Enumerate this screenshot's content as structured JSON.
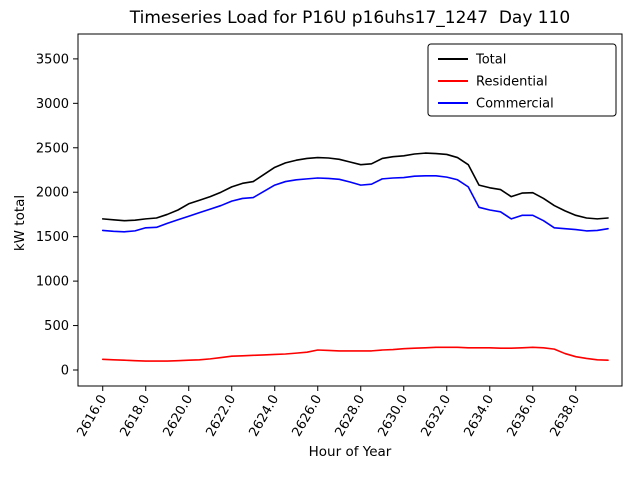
{
  "chart_data": {
    "type": "line",
    "title": "Timeseries Load for P16U p16uhs17_1247  Day 110",
    "xlabel": "Hour of Year",
    "ylabel": "kW total",
    "grid": false,
    "legend_position": "upper right",
    "xlim": [
      2614.85,
      2640.15
    ],
    "ylim": [
      -180,
      3780
    ],
    "xticks": [
      2616,
      2618,
      2620,
      2622,
      2624,
      2626,
      2628,
      2630,
      2632,
      2634,
      2636,
      2638
    ],
    "xtick_labels": [
      "2616.0",
      "2618.0",
      "2620.0",
      "2622.0",
      "2624.0",
      "2626.0",
      "2628.0",
      "2630.0",
      "2632.0",
      "2634.0",
      "2636.0",
      "2638.0"
    ],
    "yticks": [
      0,
      500,
      1000,
      1500,
      2000,
      2500,
      3000,
      3500
    ],
    "ytick_labels": [
      "0",
      "500",
      "1000",
      "1500",
      "2000",
      "2500",
      "3000",
      "3500"
    ],
    "x": [
      2616.0,
      2616.5,
      2617.0,
      2617.5,
      2618.0,
      2618.5,
      2619.0,
      2619.5,
      2620.0,
      2620.5,
      2621.0,
      2621.5,
      2622.0,
      2622.5,
      2623.0,
      2623.5,
      2624.0,
      2624.5,
      2625.0,
      2625.5,
      2626.0,
      2626.5,
      2627.0,
      2627.5,
      2628.0,
      2628.5,
      2629.0,
      2629.5,
      2630.0,
      2630.5,
      2631.0,
      2631.5,
      2632.0,
      2632.5,
      2633.0,
      2633.5,
      2634.0,
      2634.5,
      2635.0,
      2635.5,
      2636.0,
      2636.5,
      2637.0,
      2637.5,
      2638.0,
      2638.5,
      2639.0,
      2639.5
    ],
    "series": [
      {
        "name": "Total",
        "color": "#000000",
        "values": [
          1700,
          1690,
          1680,
          1685,
          1700,
          1710,
          1750,
          1800,
          1870,
          1910,
          1950,
          2000,
          2060,
          2100,
          2120,
          2200,
          2280,
          2330,
          2360,
          2380,
          2390,
          2385,
          2370,
          2340,
          2310,
          2320,
          2380,
          2400,
          2410,
          2430,
          2440,
          2435,
          2425,
          2390,
          2310,
          2080,
          2050,
          2030,
          1950,
          1990,
          1995,
          1930,
          1850,
          1790,
          1740,
          1710,
          1700,
          1710
        ]
      },
      {
        "name": "Residential",
        "color": "#ff0000",
        "values": [
          120,
          115,
          110,
          105,
          100,
          100,
          100,
          105,
          110,
          115,
          125,
          140,
          155,
          160,
          165,
          170,
          175,
          180,
          190,
          200,
          225,
          220,
          215,
          215,
          215,
          215,
          225,
          230,
          240,
          245,
          250,
          255,
          255,
          255,
          250,
          250,
          250,
          245,
          245,
          250,
          255,
          250,
          235,
          185,
          150,
          130,
          115,
          110
        ]
      },
      {
        "name": "Commercial",
        "color": "#0000ff",
        "values": [
          1570,
          1560,
          1555,
          1565,
          1600,
          1605,
          1650,
          1690,
          1730,
          1770,
          1810,
          1850,
          1900,
          1930,
          1940,
          2010,
          2080,
          2120,
          2140,
          2150,
          2160,
          2155,
          2145,
          2115,
          2080,
          2090,
          2150,
          2160,
          2165,
          2180,
          2185,
          2185,
          2170,
          2140,
          2060,
          1830,
          1800,
          1780,
          1700,
          1740,
          1740,
          1680,
          1600,
          1590,
          1580,
          1565,
          1570,
          1590
        ]
      }
    ]
  }
}
